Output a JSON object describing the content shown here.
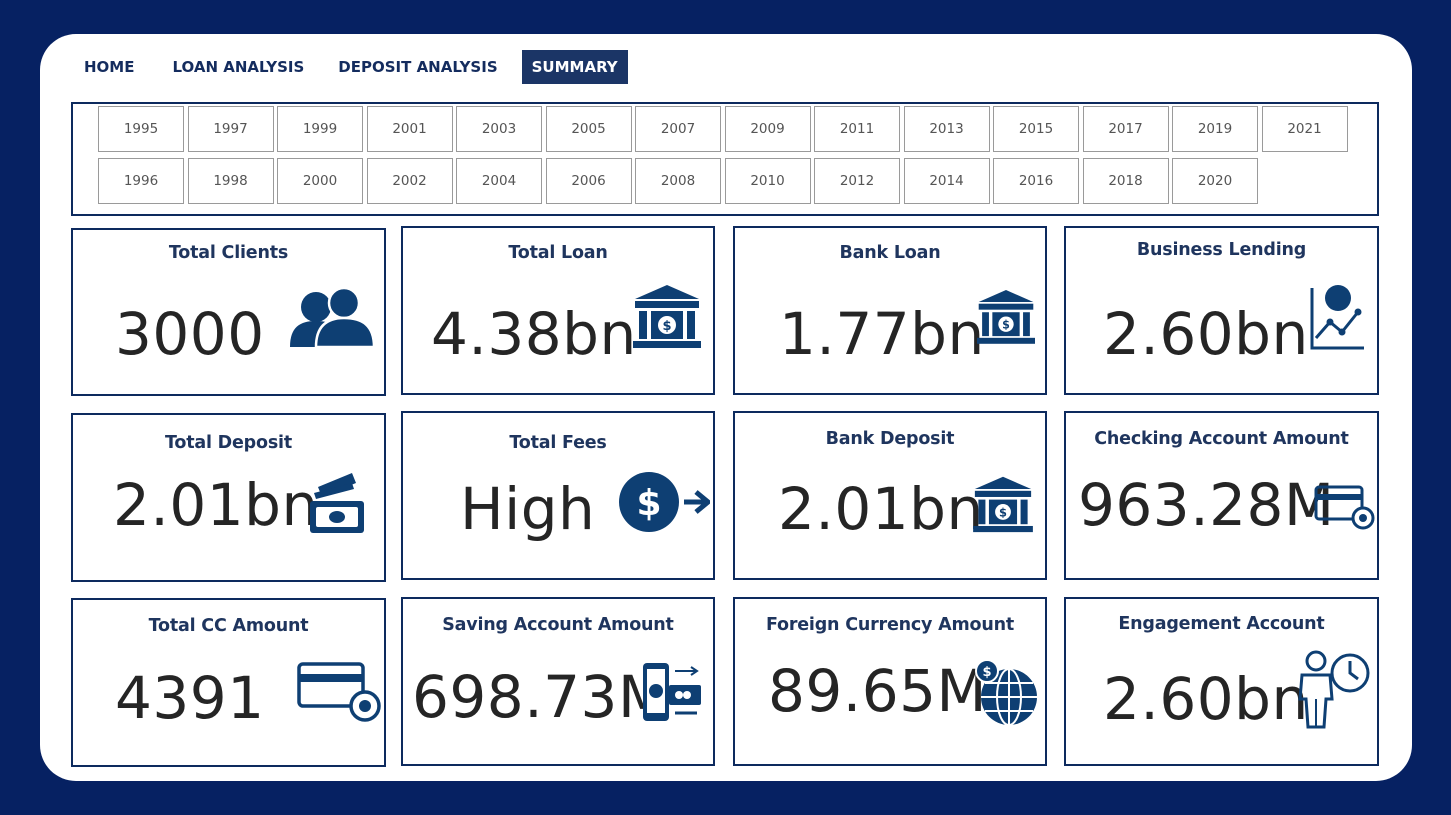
{
  "nav": {
    "tabs": [
      {
        "label": "HOME"
      },
      {
        "label": "LOAN ANALYSIS"
      },
      {
        "label": "DEPOSIT ANALYSIS"
      },
      {
        "label": "SUMMARY"
      }
    ],
    "active_tab": "SUMMARY"
  },
  "year_slicer": {
    "row1": [
      "1995",
      "1997",
      "1999",
      "2001",
      "2003",
      "2005",
      "2007",
      "2009",
      "2011",
      "2013",
      "2015",
      "2017",
      "2019",
      "2021"
    ],
    "row2": [
      "1996",
      "1998",
      "2000",
      "2002",
      "2004",
      "2006",
      "2008",
      "2010",
      "2012",
      "2014",
      "2016",
      "2018",
      "2020"
    ]
  },
  "kpis": {
    "total_clients": {
      "title": "Total Clients",
      "value": "3000",
      "icon": "clients-icon"
    },
    "total_loan": {
      "title": "Total Loan",
      "value": "4.38bn",
      "icon": "bank-icon"
    },
    "bank_loan": {
      "title": "Bank Loan",
      "value": "1.77bn",
      "icon": "bank-icon"
    },
    "business_lending": {
      "title": "Business Lending",
      "value": "2.60bn",
      "icon": "business-chart-icon"
    },
    "total_deposit": {
      "title": "Total Deposit",
      "value": "2.01bn",
      "icon": "cash-deposit-icon"
    },
    "total_fees": {
      "title": "Total Fees",
      "value": "High",
      "icon": "dollar-transfer-icon"
    },
    "bank_deposit": {
      "title": "Bank Deposit",
      "value": "2.01bn",
      "icon": "bank-icon"
    },
    "checking_account": {
      "title": "Checking Account Amount",
      "value": "963.28M",
      "icon": "card-settings-icon"
    },
    "total_cc": {
      "title": "Total CC Amount",
      "value": "4391",
      "icon": "credit-card-settings-icon"
    },
    "saving_account": {
      "title": "Saving Account Amount",
      "value": "698.73M",
      "icon": "mobile-payment-icon"
    },
    "foreign_currency": {
      "title": "Foreign Currency Amount",
      "value": "89.65M",
      "icon": "globe-dollar-icon"
    },
    "engagement_account": {
      "title": "Engagement Account",
      "value": "2.60bn",
      "icon": "person-clock-icon"
    }
  },
  "colors": {
    "background": "#062162",
    "accent": "#1b3566",
    "icon": "#0e3f73",
    "text": "#252525"
  }
}
